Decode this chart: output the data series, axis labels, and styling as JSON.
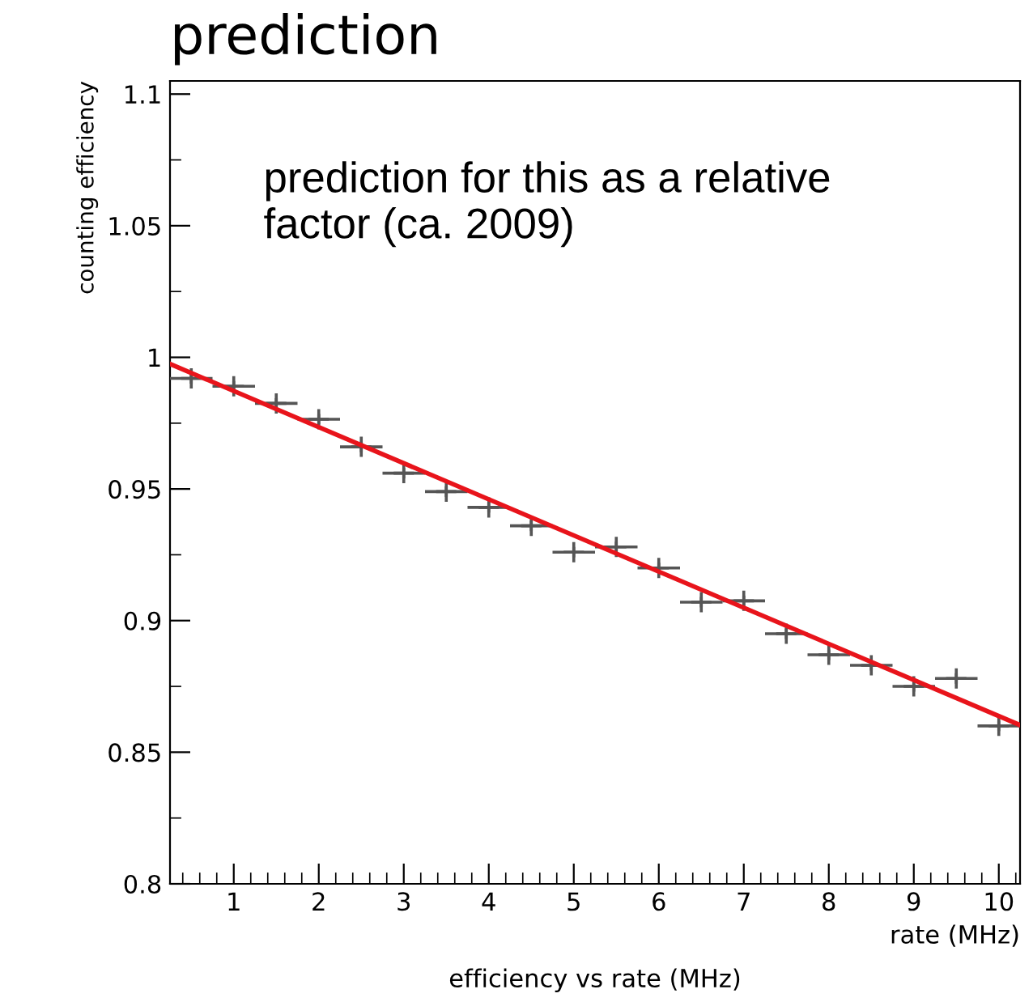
{
  "chart_data": {
    "type": "scatter",
    "title": "prediction",
    "xlabel": "rate (MHz)",
    "ylabel": "counting efficiency",
    "annotations": [
      "prediction for this as a relative factor (ca. 2009)",
      "efficiency vs rate (MHz)"
    ],
    "series": [
      {
        "color": "#555555",
        "marker": "cross",
        "x": [
          0.5,
          1.0,
          1.5,
          2.0,
          2.5,
          3.0,
          3.5,
          4.0,
          4.5,
          5.0,
          5.5,
          6.0,
          6.5,
          7.0,
          7.5,
          8.0,
          8.5,
          9.0,
          9.5,
          10.0
        ],
        "values": [
          0.992,
          0.989,
          0.9825,
          0.9765,
          0.966,
          0.956,
          0.949,
          0.943,
          0.936,
          0.926,
          0.928,
          0.92,
          0.907,
          0.9075,
          0.895,
          0.887,
          0.883,
          0.875,
          0.878,
          0.86
        ],
        "xerrors": [
          0.25,
          0.25,
          0.25,
          0.25,
          0.25,
          0.25,
          0.25,
          0.25,
          0.25,
          0.25,
          0.25,
          0.25,
          0.25,
          0.25,
          0.25,
          0.25,
          0.25,
          0.25,
          0.25,
          0.25
        ],
        "errors": [
          0.002,
          0.002,
          0.002,
          0.002,
          0.002,
          0.002,
          0.002,
          0.002,
          0.002,
          0.002,
          0.002,
          0.002,
          0.002,
          0.002,
          0.002,
          0.002,
          0.002,
          0.002,
          0.002,
          0.002
        ]
      },
      {
        "type": "line",
        "color": "#e8141b",
        "x": [
          0.25,
          10.25
        ],
        "values": [
          0.9975,
          0.8603
        ]
      }
    ],
    "xlim": [
      0.25,
      10.25
    ],
    "ylim": [
      0.8,
      1.105
    ],
    "xticks": [
      1,
      2,
      3,
      4,
      5,
      6,
      7,
      8,
      9,
      10,
      {
        "value": 0.4,
        "label": null
      },
      {
        "value": 0.6,
        "label": null
      },
      {
        "value": 0.8,
        "label": null
      },
      {
        "value": 1.2,
        "label": null
      },
      {
        "value": 1.4,
        "label": null
      },
      {
        "value": 1.6,
        "label": null
      },
      {
        "value": 1.8,
        "label": null
      },
      {
        "value": 2.2,
        "label": null
      },
      {
        "value": 2.4,
        "label": null
      },
      {
        "value": 2.6,
        "label": null
      },
      {
        "value": 2.8,
        "label": null
      },
      {
        "value": 3.2,
        "label": null
      },
      {
        "value": 3.4,
        "label": null
      },
      {
        "value": 3.6,
        "label": null
      },
      {
        "value": 3.8,
        "label": null
      },
      {
        "value": 4.2,
        "label": null
      },
      {
        "value": 4.4,
        "label": null
      },
      {
        "value": 4.6,
        "label": null
      },
      {
        "value": 4.8,
        "label": null
      },
      {
        "value": 5.2,
        "label": null
      },
      {
        "value": 5.4,
        "label": null
      },
      {
        "value": 5.6,
        "label": null
      },
      {
        "value": 5.8,
        "label": null
      },
      {
        "value": 6.2,
        "label": null
      },
      {
        "value": 6.4,
        "label": null
      },
      {
        "value": 6.6,
        "label": null
      },
      {
        "value": 6.8,
        "label": null
      },
      {
        "value": 7.2,
        "label": null
      },
      {
        "value": 7.4,
        "label": null
      },
      {
        "value": 7.6,
        "label": null
      },
      {
        "value": 7.8,
        "label": null
      },
      {
        "value": 8.2,
        "label": null
      },
      {
        "value": 8.4,
        "label": null
      },
      {
        "value": 8.6,
        "label": null
      },
      {
        "value": 8.8,
        "label": null
      },
      {
        "value": 9.2,
        "label": null
      },
      {
        "value": 9.4,
        "label": null
      },
      {
        "value": 9.6,
        "label": null
      },
      {
        "value": 9.8,
        "label": null
      },
      {
        "value": 10.2,
        "label": null
      }
    ],
    "yticks": [
      0.8,
      0.85,
      0.9,
      0.95,
      {
        "value": 1.0,
        "label": "1"
      },
      1.05,
      1.1,
      {
        "value": 0.825,
        "label": null
      },
      {
        "value": 0.875,
        "label": null
      },
      {
        "value": 0.925,
        "label": null
      },
      {
        "value": 0.975,
        "label": null
      },
      {
        "value": 1.025,
        "label": null
      },
      {
        "value": 1.075,
        "label": null
      }
    ],
    "grid": false,
    "legend": false
  }
}
